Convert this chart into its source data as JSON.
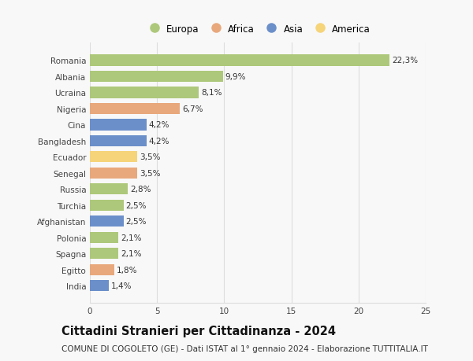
{
  "countries": [
    "Romania",
    "Albania",
    "Ucraina",
    "Nigeria",
    "Cina",
    "Bangladesh",
    "Ecuador",
    "Senegal",
    "Russia",
    "Turchia",
    "Afghanistan",
    "Polonia",
    "Spagna",
    "Egitto",
    "India"
  ],
  "values": [
    22.3,
    9.9,
    8.1,
    6.7,
    4.2,
    4.2,
    3.5,
    3.5,
    2.8,
    2.5,
    2.5,
    2.1,
    2.1,
    1.8,
    1.4
  ],
  "labels": [
    "22,3%",
    "9,9%",
    "8,1%",
    "6,7%",
    "4,2%",
    "4,2%",
    "3,5%",
    "3,5%",
    "2,8%",
    "2,5%",
    "2,5%",
    "2,1%",
    "2,1%",
    "1,8%",
    "1,4%"
  ],
  "continents": [
    "Europa",
    "Europa",
    "Europa",
    "Africa",
    "Asia",
    "Asia",
    "America",
    "Africa",
    "Europa",
    "Europa",
    "Asia",
    "Europa",
    "Europa",
    "Africa",
    "Asia"
  ],
  "continent_colors": {
    "Europa": "#adc87a",
    "Africa": "#e8a87c",
    "Asia": "#6b8fc9",
    "America": "#f5d47a"
  },
  "legend_order": [
    "Europa",
    "Africa",
    "Asia",
    "America"
  ],
  "title": "Cittadini Stranieri per Cittadinanza - 2024",
  "subtitle": "COMUNE DI COGOLETO (GE) - Dati ISTAT al 1° gennaio 2024 - Elaborazione TUTTITALIA.IT",
  "xlim": [
    0,
    25
  ],
  "xticks": [
    0,
    5,
    10,
    15,
    20,
    25
  ],
  "background_color": "#f8f8f8",
  "bar_height": 0.7,
  "grid_color": "#dddddd",
  "title_fontsize": 10.5,
  "subtitle_fontsize": 7.5,
  "label_fontsize": 7.5,
  "tick_fontsize": 7.5,
  "legend_fontsize": 8.5
}
